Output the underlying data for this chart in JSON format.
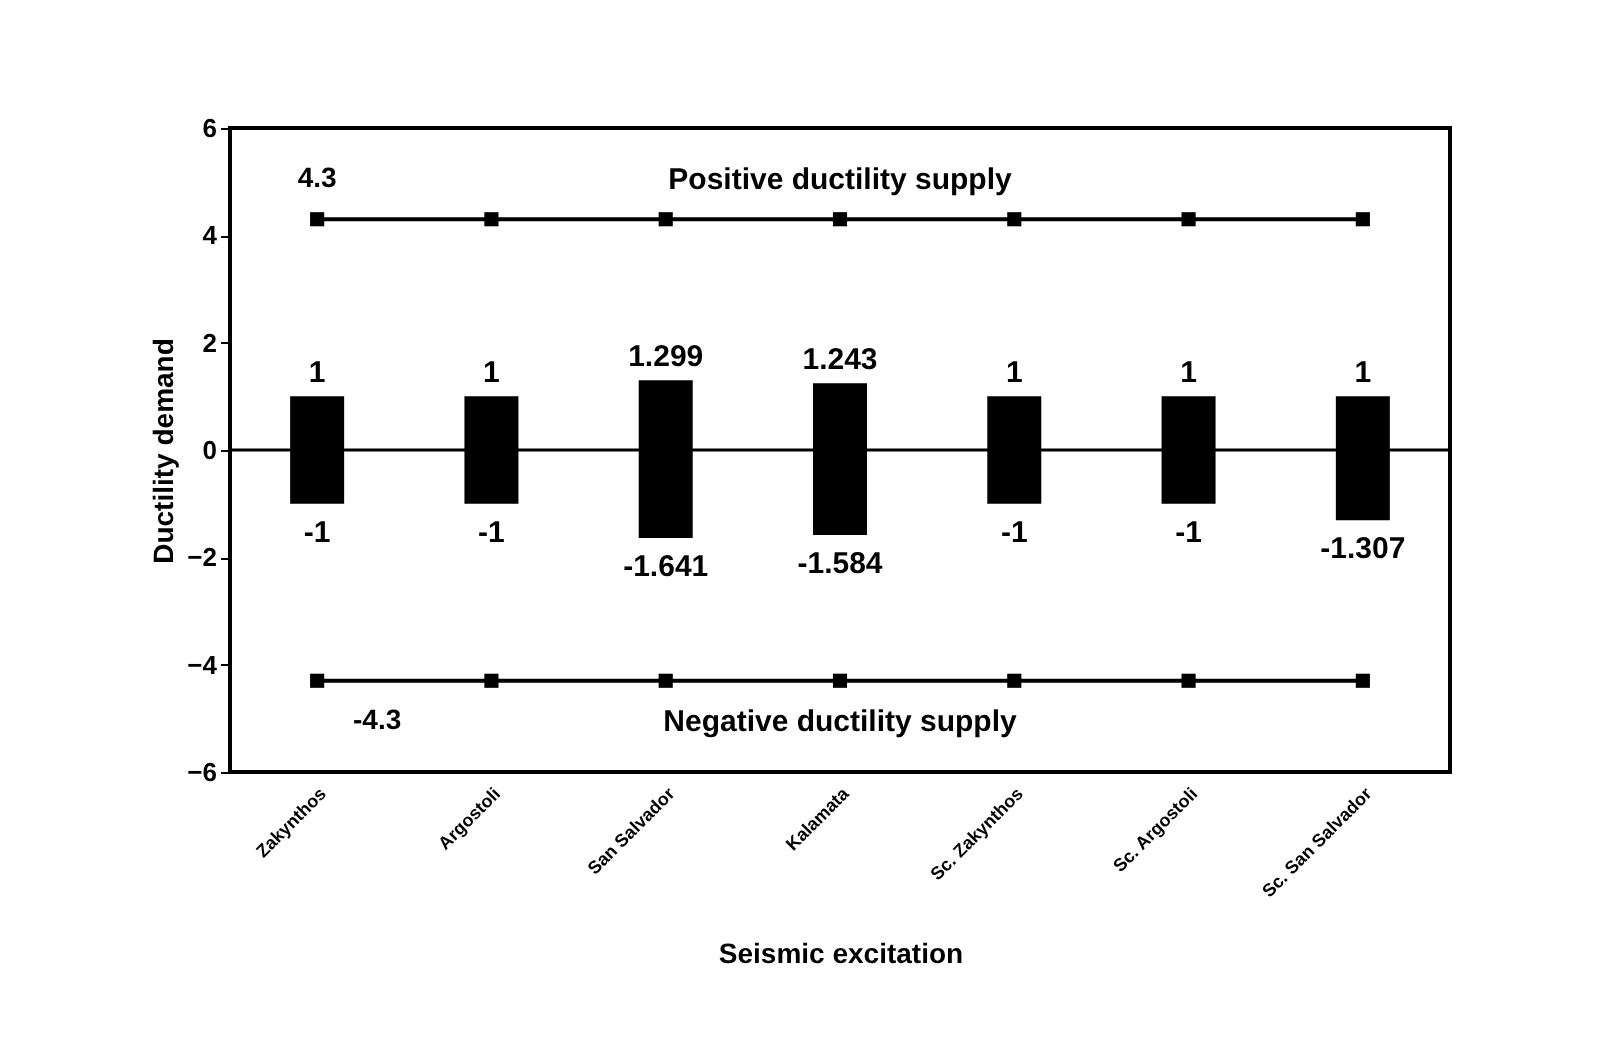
{
  "chart_data": {
    "type": "bar",
    "stacked": true,
    "xlabel": "Seismic excitation",
    "ylabel": "Ductility demand",
    "categories": [
      "Zakynthos",
      "Argostoli",
      "San Salvador",
      "Kalamata",
      "Sc. Zakynthos",
      "Sc. Argostoli",
      "Sc. San Salvador"
    ],
    "series": [
      {
        "color": "#000000",
        "values": [
          1,
          1,
          1.299,
          1.243,
          1,
          1,
          1
        ]
      },
      {
        "color": "#000000",
        "values": [
          -1,
          -1,
          -1.641,
          -1.584,
          -1,
          -1,
          -1.307
        ]
      },
      {
        "name": "Positive ductility supply",
        "type": "line",
        "color": "#000000",
        "values": [
          4.3,
          4.3,
          4.3,
          4.3,
          4.3,
          4.3,
          4.3
        ],
        "value_labels": [
          "4.3",
          null,
          null,
          null,
          null,
          null,
          null
        ]
      },
      {
        "name": "Negative ductility supply",
        "type": "line",
        "color": "#000000",
        "values": [
          -4.3,
          -4.3,
          -4.3,
          -4.3,
          -4.3,
          -4.3,
          -4.3
        ],
        "value_labels": [
          "-4.3",
          null,
          null,
          null,
          null,
          null,
          null
        ]
      }
    ],
    "data_labels": true,
    "marker": "square",
    "line_style": "solid",
    "ylim": [
      -6,
      6
    ],
    "yticks": [
      -6,
      -4,
      -2,
      0,
      2,
      4,
      6
    ],
    "grid": false,
    "ref_lines": [
      {
        "axis": "y",
        "value": 0,
        "color": "#000000"
      }
    ]
  }
}
